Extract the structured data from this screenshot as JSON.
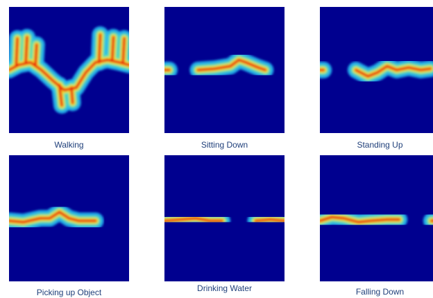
{
  "panels": [
    {
      "label": "Walking"
    },
    {
      "label": "Sitting Down"
    },
    {
      "label": "Standing Up"
    },
    {
      "label": "Picking up Object"
    },
    {
      "label": "Drinking Water"
    },
    {
      "label": "Falling Down"
    }
  ]
}
